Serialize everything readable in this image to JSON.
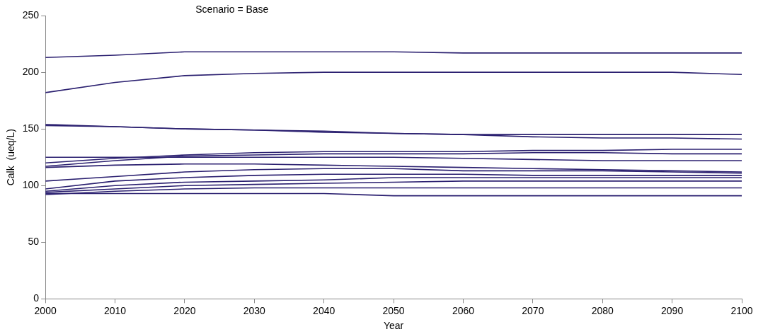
{
  "chart_data": {
    "type": "line",
    "title": "Scenario = Base",
    "xlabel": "Year",
    "ylabel": "Calk  (ueq/L)",
    "x": [
      2000,
      2010,
      2020,
      2030,
      2040,
      2050,
      2060,
      2070,
      2080,
      2090,
      2100
    ],
    "xlim": [
      2000,
      2100
    ],
    "xticks": [
      2000,
      2010,
      2020,
      2030,
      2040,
      2050,
      2060,
      2070,
      2080,
      2090,
      2100
    ],
    "ylim": [
      0,
      250
    ],
    "yticks": [
      0,
      50,
      100,
      150,
      200,
      250
    ],
    "grid": false,
    "legend": false,
    "marker": "none",
    "line_style": "solid",
    "series": [
      {
        "color": "#2b2070",
        "values": [
          213,
          215,
          218,
          218,
          218,
          218,
          217,
          217,
          217,
          217,
          217
        ]
      },
      {
        "color": "#2b2070",
        "values": [
          182,
          191,
          197,
          199,
          200,
          200,
          200,
          200,
          200,
          200,
          198
        ]
      },
      {
        "color": "#2b2070",
        "values": [
          154,
          152,
          150,
          149,
          148,
          146,
          145,
          145,
          145,
          145,
          145
        ]
      },
      {
        "color": "#2b2070",
        "values": [
          153,
          152,
          150,
          149,
          147,
          146,
          145,
          143,
          142,
          142,
          141
        ]
      },
      {
        "color": "#2b2070",
        "values": [
          120,
          124,
          127,
          129,
          130,
          130,
          130,
          131,
          131,
          132,
          132
        ]
      },
      {
        "color": "#2b2070",
        "values": [
          117,
          122,
          126,
          127,
          128,
          128,
          128,
          129,
          129,
          128,
          128
        ]
      },
      {
        "color": "#2b2070",
        "values": [
          125,
          125,
          125,
          125,
          125,
          125,
          124,
          123,
          122,
          122,
          122
        ]
      },
      {
        "color": "#2b2070",
        "values": [
          116,
          118,
          119,
          119,
          118,
          117,
          116,
          115,
          114,
          113,
          112
        ]
      },
      {
        "color": "#2b2070",
        "values": [
          104,
          108,
          112,
          114,
          115,
          115,
          113,
          113,
          113,
          112,
          111
        ]
      },
      {
        "color": "#2b2070",
        "values": [
          97,
          104,
          107,
          109,
          110,
          110,
          110,
          109,
          109,
          109,
          109
        ]
      },
      {
        "color": "#2b2070",
        "values": [
          95,
          100,
          103,
          104,
          105,
          107,
          107,
          107,
          107,
          107,
          107
        ]
      },
      {
        "color": "#2b2070",
        "values": [
          94,
          97,
          100,
          101,
          102,
          103,
          104,
          104,
          104,
          104,
          104
        ]
      },
      {
        "color": "#2b2070",
        "values": [
          92,
          95,
          97,
          98,
          98,
          98,
          98,
          98,
          98,
          98,
          98
        ]
      },
      {
        "color": "#2b2070",
        "values": [
          93,
          93,
          93,
          93,
          93,
          91,
          91,
          91,
          91,
          91,
          91
        ]
      }
    ]
  }
}
